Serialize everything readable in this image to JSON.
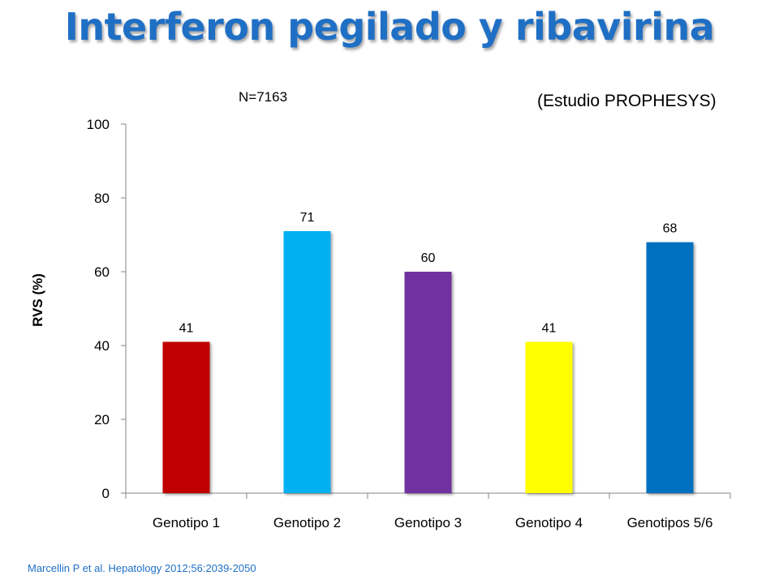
{
  "slide": {
    "title": "Interferon pegilado y ribavirina",
    "sample_size": "N=7163",
    "study_name": "(Estudio PROPHESYS)",
    "citation": "Marcellin P et al. Hepatology 2012;56:2039-2050"
  },
  "chart_data": {
    "type": "bar",
    "title": "",
    "xlabel": "",
    "ylabel": "RVS (%)",
    "categories": [
      "Genotipo 1",
      "Genotipo 2",
      "Genotipo 3",
      "Genotipo 4",
      "Genotipos 5/6"
    ],
    "values": [
      41,
      71,
      60,
      41,
      68
    ],
    "data_labels": [
      "41",
      "71",
      "60",
      "41",
      "68"
    ],
    "colors": [
      "#c00000",
      "#00b0f0",
      "#7030a0",
      "#ffff00",
      "#0070c0"
    ],
    "ylim": [
      0,
      100
    ],
    "yticks": [
      0,
      20,
      40,
      60,
      80,
      100
    ],
    "grid": false,
    "legend": "none"
  }
}
